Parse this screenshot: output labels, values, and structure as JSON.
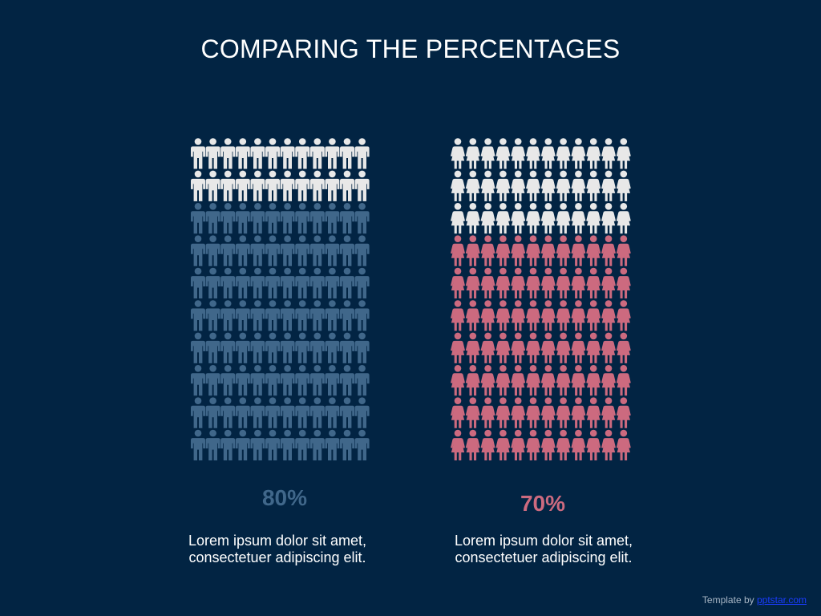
{
  "slide": {
    "title": "COMPARING THE PERCENTAGES",
    "credit_prefix": "Template by ",
    "credit_link": "pptstar.com"
  },
  "colors": {
    "background": "#022443",
    "men_filled": "#40678a",
    "men_empty": "#e8e8e8",
    "women_filled": "#cc6a7f",
    "women_empty": "#e8e8e8"
  },
  "chart_data": [
    {
      "type": "pictogram",
      "icon": "man-icon",
      "rows": 10,
      "cols": 12,
      "value": 80,
      "label": "80%",
      "description": "Lorem ipsum dolor sit amet, consectetuer adipiscing elit."
    },
    {
      "type": "pictogram",
      "icon": "woman-icon",
      "rows": 10,
      "cols": 12,
      "value": 70,
      "label": "70%",
      "description": "Lorem ipsum dolor sit amet, consectetuer adipiscing elit."
    }
  ]
}
